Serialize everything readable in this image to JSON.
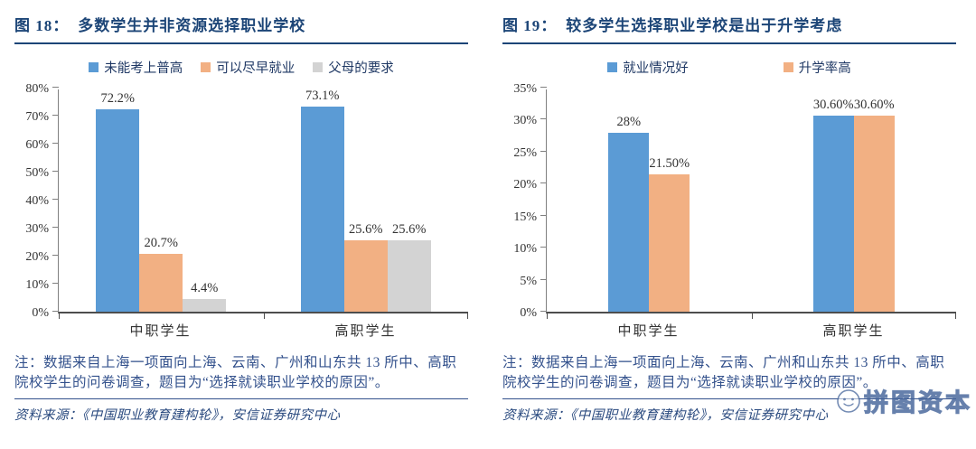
{
  "watermark": {
    "text": "拼图资本"
  },
  "chart_data": [
    {
      "type": "bar",
      "figure_label": "图 18：",
      "title": "多数学生并非资源选择职业学校",
      "categories": [
        "中职学生",
        "高职学生"
      ],
      "series": [
        {
          "name": "未能考上普高",
          "color": "#5B9BD5",
          "values": [
            72.2,
            73.1
          ],
          "value_labels": [
            "72.2%",
            "73.1%"
          ]
        },
        {
          "name": "可以尽早就业",
          "color": "#F2B083",
          "values": [
            20.7,
            25.6
          ],
          "value_labels": [
            "20.7%",
            "25.6%"
          ]
        },
        {
          "name": "父母的要求",
          "color": "#D3D3D3",
          "values": [
            4.4,
            25.6
          ],
          "value_labels": [
            "4.4%",
            "25.6%"
          ]
        }
      ],
      "ylim": [
        0,
        80
      ],
      "ytick_values": [
        0,
        10,
        20,
        30,
        40,
        50,
        60,
        70,
        80
      ],
      "ytick_labels": [
        "0%",
        "10%",
        "20%",
        "30%",
        "40%",
        "50%",
        "60%",
        "70%",
        "80%"
      ],
      "grid": false,
      "legend_position": "top",
      "note": "注：数据来自上海一项面向上海、云南、广州和山东共 13 所中、高职院校学生的问卷调查，题目为“选择就读职业学校的原因”。",
      "source": "资料来源：《中国职业教育建构轮》，安信证券研究中心"
    },
    {
      "type": "bar",
      "figure_label": "图 19：",
      "title": "较多学生选择职业学校是出于升学考虑",
      "categories": [
        "中职学生",
        "高职学生"
      ],
      "series": [
        {
          "name": "就业情况好",
          "color": "#5B9BD5",
          "values": [
            28,
            30.6
          ],
          "value_labels": [
            "28%",
            "30.60%"
          ]
        },
        {
          "name": "升学率高",
          "color": "#F2B083",
          "values": [
            21.5,
            30.6
          ],
          "value_labels": [
            "21.50%",
            "30.60%"
          ]
        }
      ],
      "ylim": [
        0,
        35
      ],
      "ytick_values": [
        0,
        5,
        10,
        15,
        20,
        25,
        30,
        35
      ],
      "ytick_labels": [
        "0%",
        "5%",
        "10%",
        "15%",
        "20%",
        "25%",
        "30%",
        "35%"
      ],
      "grid": false,
      "legend_position": "top",
      "note": "注：数据来自上海一项面向上海、云南、广州和山东共 13 所中、高职院校学生的问卷调查，题目为“选择就读职业学校的原因”。",
      "source": "资料来源：《中国职业教育建构轮》，安信证券研究中心"
    }
  ]
}
